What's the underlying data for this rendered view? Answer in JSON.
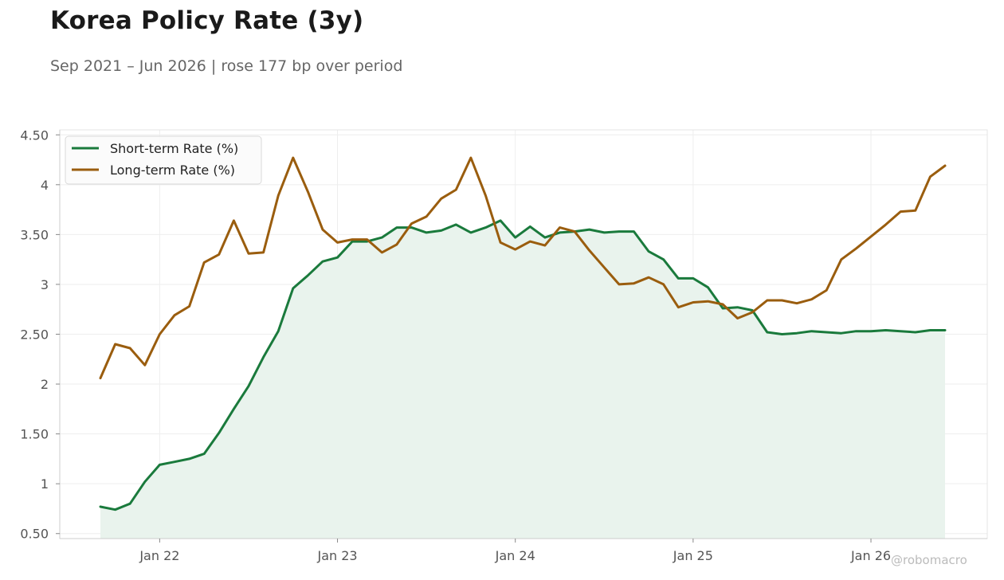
{
  "header": {
    "title": "Korea Policy Rate (3y)",
    "subtitle": "Sep 2021 – Jun 2026 | rose 177 bp over period"
  },
  "watermark": "@robomacro",
  "colors": {
    "short": "#1a7a3c",
    "long": "#9a5d0e",
    "fill": "#e9f3ed",
    "grid": "#eeeeee",
    "axis": "#cccccc",
    "tick_text": "#555555"
  },
  "chart_data": {
    "type": "line",
    "title": "Korea Policy Rate (3y)",
    "subtitle": "Sep 2021 – Jun 2026 | rose 177 bp over period",
    "xlabel": "",
    "ylabel": "",
    "x_start": "2021-09",
    "x_end": "2026-06",
    "ylim": [
      0.45,
      4.55
    ],
    "yticks": [
      0.5,
      1,
      1.5,
      2,
      2.5,
      3,
      3.5,
      4,
      4.5
    ],
    "ytick_labels": [
      "0.50",
      "1",
      "1.50",
      "2",
      "2.50",
      "3",
      "3.50",
      "4",
      "4.50"
    ],
    "xticks": [
      {
        "date": "2022-01",
        "label": "Jan 22"
      },
      {
        "date": "2023-01",
        "label": "Jan 23"
      },
      {
        "date": "2024-01",
        "label": "Jan 24"
      },
      {
        "date": "2025-01",
        "label": "Jan 25"
      },
      {
        "date": "2026-01",
        "label": "Jan 26"
      }
    ],
    "grid": true,
    "legend_position": "top-left",
    "x": [
      "2021-09",
      "2021-10",
      "2021-11",
      "2021-12",
      "2022-01",
      "2022-02",
      "2022-03",
      "2022-04",
      "2022-05",
      "2022-06",
      "2022-07",
      "2022-08",
      "2022-09",
      "2022-10",
      "2022-11",
      "2022-12",
      "2023-01",
      "2023-02",
      "2023-03",
      "2023-04",
      "2023-05",
      "2023-06",
      "2023-07",
      "2023-08",
      "2023-09",
      "2023-10",
      "2023-11",
      "2023-12",
      "2024-01",
      "2024-02",
      "2024-03",
      "2024-04",
      "2024-05",
      "2024-06",
      "2024-07",
      "2024-08",
      "2024-09",
      "2024-10",
      "2024-11",
      "2024-12",
      "2025-01",
      "2025-02",
      "2025-03",
      "2025-04",
      "2025-05",
      "2025-06",
      "2025-07",
      "2025-08",
      "2025-09",
      "2025-10",
      "2025-11",
      "2025-12",
      "2026-01",
      "2026-02",
      "2026-03",
      "2026-04",
      "2026-05",
      "2026-06"
    ],
    "series": [
      {
        "name": "Short-term Rate (%)",
        "color": "#1a7a3c",
        "fill": true,
        "values": [
          0.77,
          0.74,
          0.8,
          1.02,
          1.19,
          1.22,
          1.25,
          1.3,
          1.51,
          1.75,
          1.98,
          2.27,
          2.53,
          2.96,
          3.09,
          3.23,
          3.27,
          3.43,
          3.43,
          3.47,
          3.57,
          3.57,
          3.52,
          3.54,
          3.6,
          3.52,
          3.57,
          3.64,
          3.47,
          3.58,
          3.47,
          3.52,
          3.53,
          3.55,
          3.52,
          3.53,
          3.53,
          3.33,
          3.25,
          3.06,
          3.06,
          2.97,
          2.76,
          2.77,
          2.74,
          2.52,
          2.5,
          2.51,
          2.53,
          2.52,
          2.51,
          2.53,
          2.53,
          2.54,
          2.53,
          2.52,
          2.54,
          2.54
        ]
      },
      {
        "name": "Long-term Rate (%)",
        "color": "#9a5d0e",
        "fill": false,
        "values": [
          2.06,
          2.4,
          2.36,
          2.19,
          2.5,
          2.69,
          2.78,
          3.22,
          3.3,
          3.64,
          3.31,
          3.32,
          3.89,
          4.27,
          3.93,
          3.55,
          3.42,
          3.45,
          3.45,
          3.32,
          3.4,
          3.61,
          3.68,
          3.86,
          3.95,
          4.27,
          3.89,
          3.42,
          3.35,
          3.43,
          3.39,
          3.57,
          3.53,
          3.34,
          3.17,
          3.0,
          3.01,
          3.07,
          3.0,
          2.77,
          2.82,
          2.83,
          2.8,
          2.66,
          2.72,
          2.84,
          2.84,
          2.81,
          2.85,
          2.94,
          3.25,
          3.36,
          3.48,
          3.6,
          3.73,
          3.74,
          4.08,
          4.19
        ]
      }
    ]
  }
}
